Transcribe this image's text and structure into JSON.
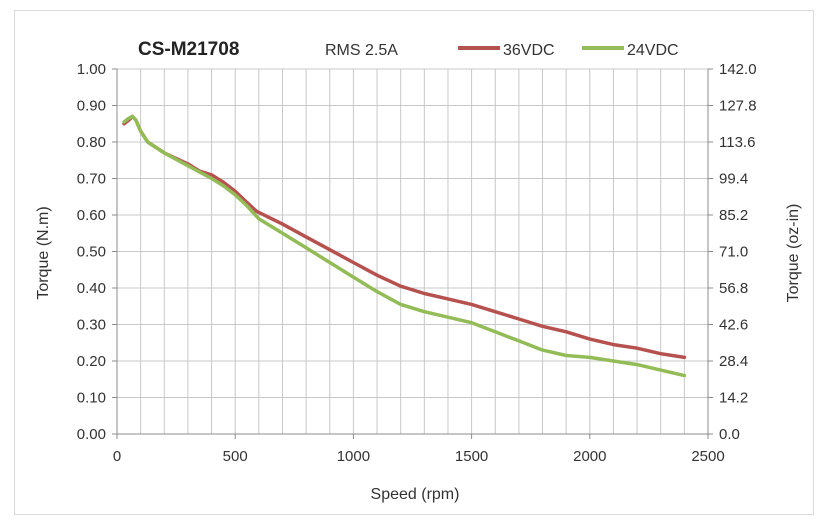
{
  "chart_data": {
    "type": "line",
    "title": "CS-M21708",
    "subtitle": "RMS 2.5A",
    "xlabel": "Speed (rpm)",
    "ylabel": "Torque (N.m)",
    "y2label": "Torque (oz-in)",
    "xlim": [
      0,
      2500
    ],
    "ylim": [
      0,
      1.0
    ],
    "y2lim": [
      0,
      142.0
    ],
    "x_ticks": [
      "0",
      "500",
      "1000",
      "1500",
      "2000",
      "2500"
    ],
    "y_ticks": [
      "0.00",
      "0.10",
      "0.20",
      "0.30",
      "0.40",
      "0.50",
      "0.60",
      "0.70",
      "0.80",
      "0.90",
      "1.00"
    ],
    "y2_ticks": [
      "0.0",
      "14.2",
      "28.4",
      "42.6",
      "56.8",
      "71.0",
      "85.2",
      "99.4",
      "113.6",
      "127.8",
      "142.0"
    ],
    "grid": true,
    "legend_position": "top-right",
    "series": [
      {
        "name": "36VDC",
        "color": "#b5514f",
        "points": [
          [
            30,
            0.85
          ],
          [
            50,
            0.86
          ],
          [
            65,
            0.87
          ],
          [
            80,
            0.86
          ],
          [
            100,
            0.83
          ],
          [
            130,
            0.8
          ],
          [
            200,
            0.77
          ],
          [
            300,
            0.74
          ],
          [
            350,
            0.72
          ],
          [
            400,
            0.71
          ],
          [
            450,
            0.69
          ],
          [
            500,
            0.665
          ],
          [
            540,
            0.64
          ],
          [
            590,
            0.61
          ],
          [
            700,
            0.575
          ],
          [
            800,
            0.54
          ],
          [
            900,
            0.505
          ],
          [
            1000,
            0.47
          ],
          [
            1100,
            0.435
          ],
          [
            1200,
            0.405
          ],
          [
            1300,
            0.385
          ],
          [
            1400,
            0.37
          ],
          [
            1500,
            0.355
          ],
          [
            1600,
            0.335
          ],
          [
            1700,
            0.315
          ],
          [
            1800,
            0.295
          ],
          [
            1900,
            0.28
          ],
          [
            2000,
            0.26
          ],
          [
            2100,
            0.245
          ],
          [
            2200,
            0.235
          ],
          [
            2300,
            0.22
          ],
          [
            2400,
            0.21
          ]
        ]
      },
      {
        "name": "24VDC",
        "color": "#93bc58",
        "points": [
          [
            30,
            0.855
          ],
          [
            50,
            0.865
          ],
          [
            65,
            0.87
          ],
          [
            80,
            0.86
          ],
          [
            100,
            0.83
          ],
          [
            130,
            0.8
          ],
          [
            200,
            0.77
          ],
          [
            300,
            0.735
          ],
          [
            400,
            0.7
          ],
          [
            450,
            0.68
          ],
          [
            500,
            0.655
          ],
          [
            550,
            0.625
          ],
          [
            600,
            0.59
          ],
          [
            700,
            0.55
          ],
          [
            800,
            0.51
          ],
          [
            900,
            0.47
          ],
          [
            1000,
            0.43
          ],
          [
            1100,
            0.39
          ],
          [
            1200,
            0.355
          ],
          [
            1300,
            0.335
          ],
          [
            1400,
            0.32
          ],
          [
            1500,
            0.305
          ],
          [
            1600,
            0.28
          ],
          [
            1700,
            0.255
          ],
          [
            1800,
            0.23
          ],
          [
            1900,
            0.215
          ],
          [
            2000,
            0.21
          ],
          [
            2100,
            0.2
          ],
          [
            2200,
            0.19
          ],
          [
            2300,
            0.175
          ],
          [
            2400,
            0.16
          ]
        ]
      }
    ]
  }
}
